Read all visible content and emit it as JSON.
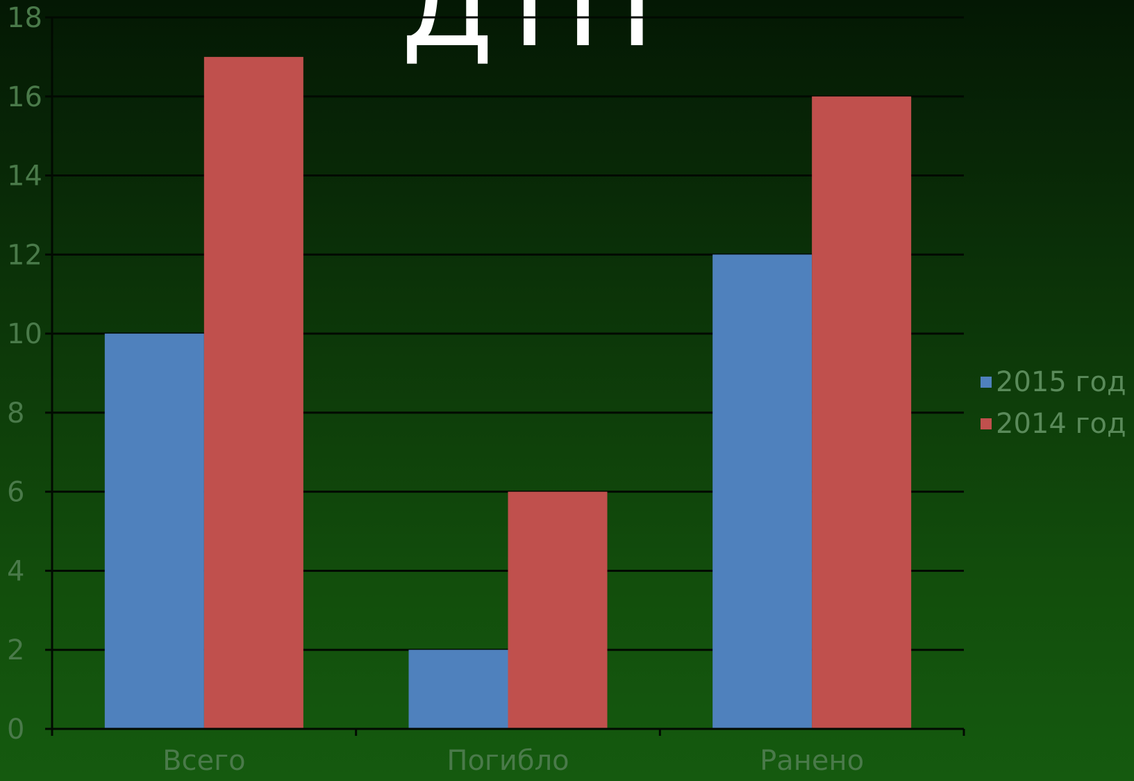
{
  "chart_data": {
    "type": "bar",
    "title": "ДТП",
    "categories": [
      "Всего",
      "Погибло",
      "Ранено"
    ],
    "series": [
      {
        "name": "2015 год",
        "color": "#4f81bd",
        "values": [
          10,
          2,
          12
        ]
      },
      {
        "name": "2014 год",
        "color": "#c0504d",
        "values": [
          17,
          6,
          16
        ]
      }
    ],
    "ylim": [
      0,
      18
    ],
    "yticks": [
      0,
      2,
      4,
      6,
      8,
      10,
      12,
      14,
      16,
      18
    ],
    "grid": true,
    "legend": "right",
    "xlabel": "",
    "ylabel": ""
  }
}
